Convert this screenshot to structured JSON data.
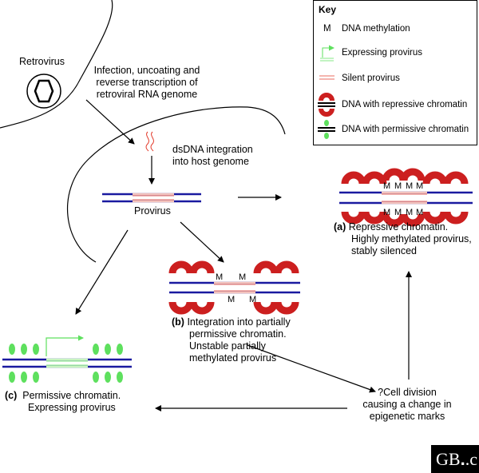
{
  "labels": {
    "retrovirus": "Retrovirus",
    "infection": [
      "Infection, uncoating and",
      "reverse transcription of",
      "retroviral RNA genome"
    ],
    "integration": [
      "dsDNA integration",
      "into host genome"
    ],
    "provirus": "Provirus",
    "a_letter": "(a)",
    "a_text": [
      "Repressive chromatin.",
      "Highly methylated provirus,",
      "stably silenced"
    ],
    "b_letter": "(b)",
    "b_text": [
      "Integration into partially",
      "permissive chromatin.",
      "Unstable partially",
      "methylated provirus"
    ],
    "c_letter": "(c)",
    "c_text": [
      "Permissive chromatin.",
      "Expressing provirus"
    ],
    "cell_division": [
      "?Cell division",
      "causing a change in",
      "epigenetic marks"
    ],
    "methyl_mark": "M"
  },
  "key": {
    "title": "Key",
    "methylation": "DNA methylation",
    "expressing": "Expressing provirus",
    "silent": "Silent provirus",
    "repressive": "DNA with repressive chromatin",
    "permissive": "DNA with permissive chromatin"
  },
  "logo": {
    "text": "GB",
    "suffix": ".c"
  },
  "colors": {
    "dna": "#1a1aa0",
    "silent": "#e23a2a",
    "expressing": "#5ee05e",
    "nucleosome": "#cc1f1f"
  }
}
